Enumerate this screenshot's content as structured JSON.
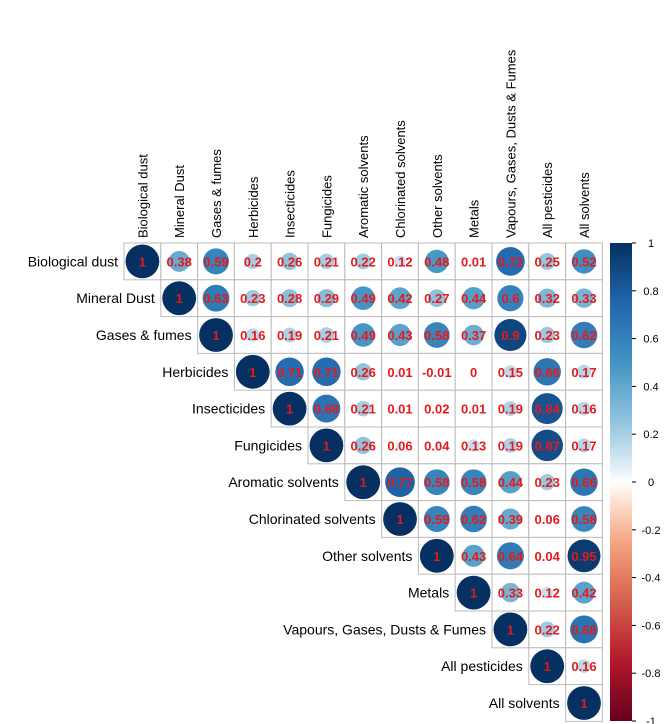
{
  "chart_data": {
    "type": "heatmap",
    "layout": "upper-triangle",
    "glyph": "circle",
    "variables": [
      "Biological dust",
      "Mineral Dust",
      "Gases & fumes",
      "Herbicides",
      "Insecticides",
      "Fungicides",
      "Aromatic solvents",
      "Chlorinated solvents",
      "Other solvents",
      "Metals",
      "Vapours, Gases, Dusts & Fumes",
      "All pesticides",
      "All solvents"
    ],
    "matrix": [
      [
        1,
        0.38,
        0.59,
        0.2,
        0.26,
        0.21,
        0.22,
        0.12,
        0.48,
        0.01,
        0.72,
        0.25,
        0.52
      ],
      [
        null,
        1,
        0.63,
        0.23,
        0.28,
        0.29,
        0.49,
        0.42,
        0.27,
        0.44,
        0.6,
        0.32,
        0.33
      ],
      [
        null,
        null,
        1,
        0.16,
        0.19,
        0.21,
        0.49,
        0.43,
        0.58,
        0.37,
        0.9,
        0.23,
        0.62
      ],
      [
        null,
        null,
        null,
        1,
        0.71,
        0.71,
        0.26,
        0.01,
        -0.01,
        0,
        0.15,
        0.66,
        0.17
      ],
      [
        null,
        null,
        null,
        null,
        1,
        0.68,
        0.21,
        0.01,
        0.02,
        0.01,
        0.19,
        0.84,
        0.16
      ],
      [
        null,
        null,
        null,
        null,
        null,
        1,
        0.26,
        0.06,
        0.04,
        0.13,
        0.19,
        0.87,
        0.17
      ],
      [
        null,
        null,
        null,
        null,
        null,
        null,
        1,
        0.77,
        0.58,
        0.58,
        0.44,
        0.23,
        0.66
      ],
      [
        null,
        null,
        null,
        null,
        null,
        null,
        null,
        1,
        0.59,
        0.62,
        0.39,
        0.06,
        0.58
      ],
      [
        null,
        null,
        null,
        null,
        null,
        null,
        null,
        null,
        1,
        0.43,
        0.64,
        0.04,
        0.95
      ],
      [
        null,
        null,
        null,
        null,
        null,
        null,
        null,
        null,
        null,
        1,
        0.33,
        0.12,
        0.42
      ],
      [
        null,
        null,
        null,
        null,
        null,
        null,
        null,
        null,
        null,
        null,
        1,
        0.22,
        0.68
      ],
      [
        null,
        null,
        null,
        null,
        null,
        null,
        null,
        null,
        null,
        null,
        null,
        1,
        0.16
      ],
      [
        null,
        null,
        null,
        null,
        null,
        null,
        null,
        null,
        null,
        null,
        null,
        null,
        1
      ]
    ],
    "color_scale": {
      "range": [
        -1,
        1
      ],
      "ticks": [
        1,
        0.8,
        0.6,
        0.4,
        0.2,
        0,
        -0.2,
        -0.4,
        -0.6,
        -0.8,
        -1
      ],
      "stops": [
        {
          "value": -1,
          "color": "#67001F"
        },
        {
          "value": -0.75,
          "color": "#B2182B"
        },
        {
          "value": -0.5,
          "color": "#D6604D"
        },
        {
          "value": -0.25,
          "color": "#F4A582"
        },
        {
          "value": -0.1,
          "color": "#FDDBC7"
        },
        {
          "value": 0,
          "color": "#FFFFFF"
        },
        {
          "value": 0.1,
          "color": "#D1E5F0"
        },
        {
          "value": 0.25,
          "color": "#92C5DE"
        },
        {
          "value": 0.5,
          "color": "#4393C3"
        },
        {
          "value": 0.75,
          "color": "#2166AC"
        },
        {
          "value": 1,
          "color": "#053061"
        }
      ]
    },
    "number_color": "#E41A1C",
    "grid_color": "#BBBBBB",
    "legend_position": "right"
  }
}
